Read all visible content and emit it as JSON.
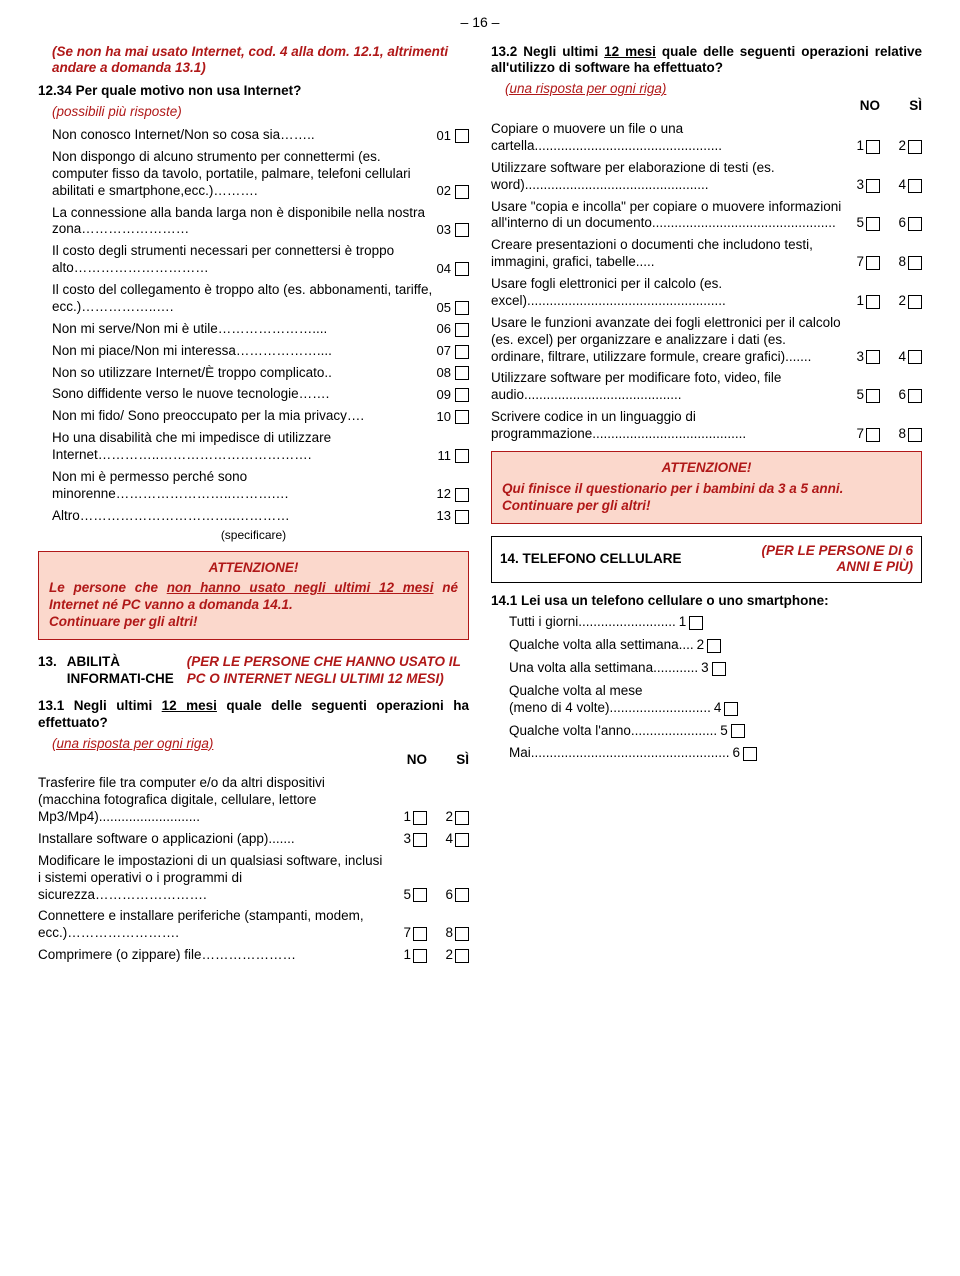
{
  "page_number": "– 16 –",
  "left": {
    "prelude": "(Se non ha mai usato Internet, cod. 4 alla dom. 12.1, altrimenti andare a domanda 13.1)",
    "q1234": {
      "num": "12.34",
      "text": "Per quale motivo non usa Internet?",
      "hint": "(possibili più risposte)",
      "items": [
        {
          "t": "Non conosco Internet/Non so cosa sia……..",
          "c": "01"
        },
        {
          "t": "Non dispongo di alcuno strumento per connettermi (es. computer fisso da tavolo, portatile, palmare, telefoni cellulari abilitati e smartphone,ecc.)……….",
          "c": "02"
        },
        {
          "t": "La connessione alla banda larga non è disponibile nella nostra zona……………………",
          "c": "03"
        },
        {
          "t": "Il costo degli strumenti necessari per connettersi è troppo alto…………………………",
          "c": "04"
        },
        {
          "t": "Il costo del collegamento è troppo alto (es. abbonamenti, tariffe, ecc.)……………..….",
          "c": "05"
        },
        {
          "t": "Non mi serve/Non mi è utile…………………....",
          "c": "06"
        },
        {
          "t": "Non mi piace/Non mi interessa………………....",
          "c": "07"
        },
        {
          "t": "Non so utilizzare Internet/È troppo complicato..",
          "c": "08"
        },
        {
          "t": "Sono diffidente verso le nuove tecnologie…….",
          "c": "09"
        },
        {
          "t": "Non mi fido/ Sono preoccupato per la mia privacy….",
          "c": "10"
        },
        {
          "t": "Ho una disabilità che mi impedisce di utilizzare Internet…………..…………………………….",
          "c": "11"
        },
        {
          "t": "Non mi è permesso perché sono minorenne……………………..……….…",
          "c": "12"
        },
        {
          "t": "Altro……………………………..…………",
          "c": "13"
        }
      ],
      "specificare": "(specificare)"
    },
    "attention": {
      "title": "ATTENZIONE!",
      "line1a": "Le persone che ",
      "line1b": "non hanno usato negli ultimi 12 mesi",
      "line1c": " né Internet né PC vanno a domanda 14.1.",
      "line2": "Continuare per gli altri!"
    },
    "section13": {
      "num": "13.",
      "title": "ABILITÀ INFORMATI-CHE",
      "note": "(PER LE PERSONE CHE HANNO USATO IL PC O INTERNET NEGLI ULTIMI 12 MESI)"
    },
    "q131": {
      "num": "13.1",
      "text_a": "Negli ultimi ",
      "text_u": "12 mesi",
      "text_b": " quale delle seguenti operazioni ha effettuato?",
      "hint": "(una risposta per ogni riga)",
      "no_label": "NO",
      "si_label": "SÌ",
      "rows": [
        {
          "t": "Trasferire file tra computer e/o da altri dispositivi (macchina fotografica digitale, cellulare, lettore Mp3/Mp4)...........................",
          "n": "1",
          "s": "2"
        },
        {
          "t": "Installare software o applicazioni (app).......",
          "n": "3",
          "s": "4"
        },
        {
          "t": "Modificare le impostazioni di un qualsiasi software, inclusi i sistemi operativi o i programmi di sicurezza…………………….",
          "n": "5",
          "s": "6"
        },
        {
          "t": "Connettere e installare periferiche (stampanti, modem, ecc.)…………………….",
          "n": "7",
          "s": "8"
        },
        {
          "t": "Comprimere (o zippare) file…………………",
          "n": "1",
          "s": "2"
        }
      ]
    }
  },
  "right": {
    "q132": {
      "num": "13.2",
      "text_a": "Negli ultimi ",
      "text_u": "12 mesi",
      "text_b": " quale delle seguenti operazioni relative all'utilizzo di software ha effettuato?",
      "hint": "(una risposta per ogni riga)",
      "no_label": "NO",
      "si_label": "SÌ",
      "rows": [
        {
          "t": "Copiare o muovere un file o una cartella..................................................",
          "n": "1",
          "s": "2"
        },
        {
          "t": "Utilizzare software per  elaborazione di testi (es. word).................................................",
          "n": "3",
          "s": "4"
        },
        {
          "t": "Usare \"copia e incolla\" per copiare o muovere informazioni all'interno di un documento.................................................",
          "n": "5",
          "s": "6"
        },
        {
          "t": "Creare presentazioni o documenti che includono testi, immagini, grafici, tabelle.....",
          "n": "7",
          "s": "8"
        },
        {
          "t": "Usare fogli elettronici per il calcolo (es. excel).....................................................",
          "n": "1",
          "s": "2"
        },
        {
          "t": "Usare le funzioni avanzate dei fogli elettronici per il calcolo (es. excel) per organizzare e analizzare i dati (es. ordinare, filtrare, utilizzare formule, creare grafici).......",
          "n": "3",
          "s": "4"
        },
        {
          "t": "Utilizzare software per modificare foto, video, file audio..........................................",
          "n": "5",
          "s": "6"
        },
        {
          "t": "Scrivere codice in un linguaggio di programmazione.........................................",
          "n": "7",
          "s": "8"
        }
      ]
    },
    "attention": {
      "title": "ATTENZIONE!",
      "line1": "Qui finisce il questionario per i bambini da 3 a 5 anni.",
      "line2": "Continuare per gli altri!"
    },
    "section14": {
      "title": "14.  TELEFONO CELLULARE",
      "note": "(PER LE PERSONE DI 6 ANNI E PIÙ)"
    },
    "q141": {
      "num": "14.1",
      "text": "Lei usa un telefono cellulare o uno smartphone:",
      "items": [
        {
          "t": "Tutti i giorni..........................",
          "c": "1"
        },
        {
          "t": "Qualche volta alla settimana....",
          "c": "2"
        },
        {
          "t": "Una volta alla settimana............",
          "c": "3"
        },
        {
          "t": "Qualche volta al mese\n(meno di 4 volte)...........................",
          "c": "4"
        },
        {
          "t": "Qualche volta l'anno.......................",
          "c": "5"
        },
        {
          "t": "Mai.....................................................",
          "c": "6"
        }
      ]
    }
  }
}
